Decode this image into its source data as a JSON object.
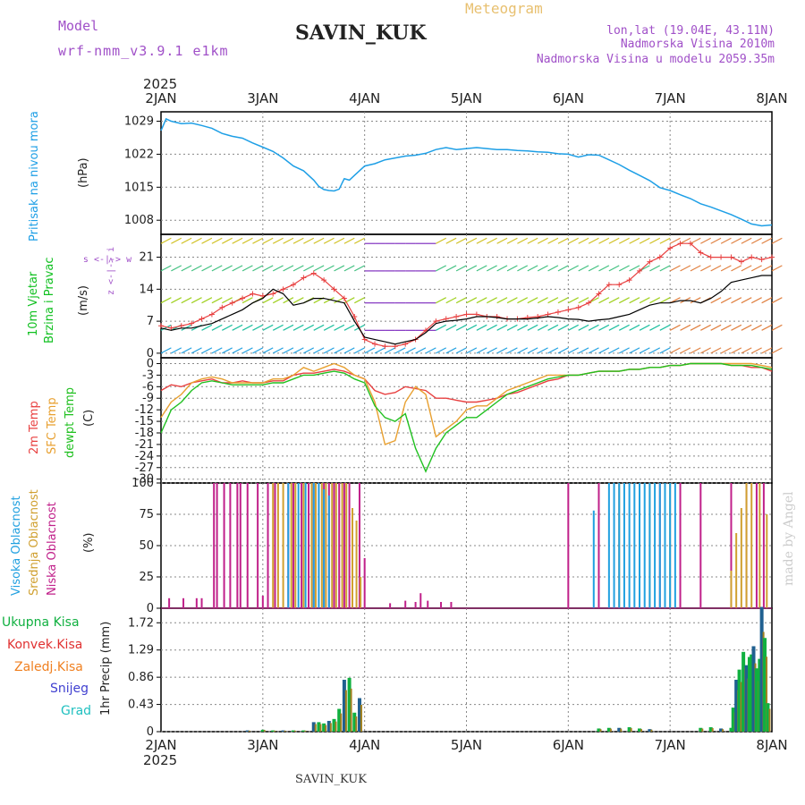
{
  "header": {
    "model_label": "Model",
    "model_name": "wrf-nmm_v3.9.1 e1km",
    "station": "SAVIN_KUK",
    "product": "Meteogram",
    "coords": "lon,lat (19.04E, 43.11N)",
    "elevation": "Nadmorska Visina 2010m",
    "model_elevation": "Nadmorska Visina u modelu 2059.35m",
    "year_top": "2025",
    "year_bottom": "2025",
    "footer_station": "SAVIN_KUK",
    "credit": "made by Angel"
  },
  "colors": {
    "pressure": "#1e9fe6",
    "wind_label": "#10c020",
    "temp2m": "#e84040",
    "sfc": "#e8a030",
    "dewpt": "#20c020",
    "high_cloud": "#20a0e0",
    "mid_cloud": "#d0a030",
    "low_cloud": "#c0208a",
    "purple": "#a050c8",
    "precip_total": "#10b040",
    "precip_conv": "#e03030",
    "precip_strat": "#f08020",
    "snow": "#4040d0",
    "grad": "#20c0c0"
  },
  "chart_data": [
    {
      "type": "line",
      "panel": "pressure",
      "ylabel_side": "Pritisak na nivou mora",
      "ylabel": "(hPa)",
      "x_ticks": [
        "2JAN",
        "3JAN",
        "4JAN",
        "5JAN",
        "6JAN",
        "7JAN",
        "8JAN"
      ],
      "ylim": [
        1005,
        1031
      ],
      "y_ticks": [
        1008,
        1015,
        1022,
        1029
      ],
      "x": [
        0,
        0.05,
        0.1,
        0.2,
        0.3,
        0.4,
        0.5,
        0.6,
        0.7,
        0.8,
        0.9,
        1.0,
        1.1,
        1.2,
        1.3,
        1.4,
        1.5,
        1.55,
        1.6,
        1.65,
        1.7,
        1.75,
        1.8,
        1.85,
        1.9,
        2.0,
        2.1,
        2.2,
        2.3,
        2.4,
        2.5,
        2.6,
        2.7,
        2.8,
        2.9,
        3.0,
        3.1,
        3.2,
        3.3,
        3.4,
        3.5,
        3.6,
        3.7,
        3.8,
        3.9,
        4.0,
        4.1,
        4.2,
        4.3,
        4.4,
        4.5,
        4.6,
        4.7,
        4.8,
        4.9,
        5.0,
        5.1,
        5.2,
        5.3,
        5.4,
        5.5,
        5.6,
        5.7,
        5.8,
        5.9,
        6.0
      ],
      "y": [
        1027,
        1029.5,
        1029,
        1028.5,
        1028.6,
        1028.1,
        1027.5,
        1026.4,
        1025.8,
        1025.4,
        1024.4,
        1023.5,
        1022.6,
        1021.2,
        1019.5,
        1018.5,
        1016.5,
        1015.2,
        1014.5,
        1014.3,
        1014.2,
        1014.6,
        1016.8,
        1016.5,
        1017.5,
        1019.5,
        1020.0,
        1020.8,
        1021.2,
        1021.6,
        1021.8,
        1022.2,
        1023.0,
        1023.4,
        1023.0,
        1023.2,
        1023.4,
        1023.2,
        1023.0,
        1023.0,
        1022.8,
        1022.7,
        1022.5,
        1022.4,
        1022.1,
        1022.0,
        1021.4,
        1021.9,
        1021.8,
        1020.8,
        1019.8,
        1018.6,
        1017.5,
        1016.4,
        1014.9,
        1014.3,
        1013.4,
        1012.6,
        1011.5,
        1010.8,
        1010.0,
        1009.2,
        1008.2,
        1007.2,
        1006.8,
        1007.0
      ]
    },
    {
      "type": "line",
      "panel": "wind",
      "ylabel_side": [
        "10m Vjetar",
        "Brzina i Pravac"
      ],
      "ylabel": "(m/s)",
      "compass": "z <-|-> i",
      "compass_side": "s <-|-> w",
      "ylim": [
        -1,
        26
      ],
      "y_ticks": [
        0,
        7,
        14,
        21
      ],
      "x": [
        0,
        0.1,
        0.2,
        0.3,
        0.4,
        0.5,
        0.6,
        0.7,
        0.8,
        0.9,
        1.0,
        1.1,
        1.2,
        1.3,
        1.4,
        1.5,
        1.6,
        1.7,
        1.8,
        1.9,
        2.0,
        2.1,
        2.2,
        2.3,
        2.4,
        2.5,
        2.6,
        2.7,
        2.8,
        2.9,
        3.0,
        3.1,
        3.2,
        3.3,
        3.4,
        3.5,
        3.6,
        3.7,
        3.8,
        3.9,
        4.0,
        4.1,
        4.2,
        4.3,
        4.4,
        4.5,
        4.6,
        4.7,
        4.8,
        4.9,
        5.0,
        5.1,
        5.2,
        5.3,
        5.4,
        5.5,
        5.6,
        5.7,
        5.8,
        5.9,
        6.0
      ],
      "series": [
        {
          "values": [
            5.5,
            5.0,
            5.5,
            5.5,
            6.0,
            6.5,
            7.5,
            8.5,
            9.5,
            11,
            12,
            14,
            13,
            10.5,
            11,
            12,
            12,
            11.5,
            11,
            7,
            3.5,
            3.0,
            2.5,
            2.0,
            2.5,
            3.0,
            4.5,
            6.5,
            7.0,
            7.2,
            7.5,
            8.0,
            8.0,
            7.8,
            7.5,
            7.5,
            7.5,
            7.7,
            8.0,
            7.8,
            7.5,
            7.4,
            7.0,
            7.3,
            7.5,
            8.0,
            8.5,
            9.5,
            10.5,
            11,
            11,
            11.5,
            11.5,
            11,
            12,
            13.5,
            15.5,
            16,
            16.5,
            17,
            17
          ]
        },
        {
          "values": [
            6,
            5.5,
            6,
            6.5,
            7.5,
            8.5,
            10,
            11,
            12,
            13,
            12.5,
            13,
            14,
            15,
            16.5,
            17.5,
            16,
            14,
            12,
            8,
            3,
            2,
            1.5,
            1.5,
            2,
            3,
            5,
            7,
            7.5,
            8,
            8.5,
            8.5,
            8,
            8,
            7.5,
            7.5,
            7.8,
            8,
            8.5,
            9,
            9.5,
            10,
            11,
            13,
            15,
            15,
            16,
            18,
            20,
            21,
            23,
            24,
            24,
            22,
            21,
            21,
            21,
            20,
            21,
            20.5,
            21
          ]
        }
      ]
    },
    {
      "type": "line",
      "panel": "temperature",
      "ylabel_side": [
        "2m Temp",
        "SFC Temp",
        "dewpt Temp"
      ],
      "ylabel": "(C)",
      "ylim": [
        -31,
        1.5
      ],
      "y_ticks": [
        0,
        -3,
        -6,
        -9,
        -12,
        -15,
        -18,
        -21,
        -24,
        -27,
        -30
      ],
      "x": [
        0,
        0.1,
        0.2,
        0.3,
        0.4,
        0.5,
        0.6,
        0.7,
        0.8,
        0.9,
        1.0,
        1.1,
        1.2,
        1.3,
        1.4,
        1.5,
        1.6,
        1.7,
        1.8,
        1.9,
        2.0,
        2.1,
        2.2,
        2.3,
        2.4,
        2.5,
        2.6,
        2.7,
        2.8,
        2.9,
        3.0,
        3.1,
        3.2,
        3.3,
        3.4,
        3.5,
        3.6,
        3.7,
        3.8,
        3.9,
        4.0,
        4.1,
        4.2,
        4.3,
        4.4,
        4.5,
        4.6,
        4.7,
        4.8,
        4.9,
        5.0,
        5.1,
        5.2,
        5.3,
        5.4,
        5.5,
        5.6,
        5.7,
        5.8,
        5.9,
        6.0
      ],
      "series": [
        {
          "name": "2m Temp",
          "values": [
            -7,
            -5.5,
            -6,
            -5,
            -4.5,
            -4,
            -5,
            -5,
            -4.5,
            -5,
            -5,
            -4.5,
            -4.5,
            -3,
            -2.5,
            -2.5,
            -2,
            -1.5,
            -2,
            -3,
            -4,
            -7,
            -8,
            -7.5,
            -6,
            -6.5,
            -7,
            -9,
            -9,
            -9.5,
            -10,
            -10,
            -9.5,
            -9,
            -8,
            -7.5,
            -6.5,
            -5.5,
            -4.5,
            -4,
            -3,
            -3,
            -2.5,
            -2,
            -2,
            -2,
            -1.5,
            -1.5,
            -1,
            -1,
            -0.5,
            -0.5,
            0,
            0,
            0,
            0,
            -0.5,
            -0.5,
            -1,
            -1,
            -2
          ]
        },
        {
          "name": "SFC Temp",
          "values": [
            -14,
            -10,
            -8,
            -5,
            -4,
            -3.5,
            -4,
            -5,
            -5,
            -5,
            -5,
            -4,
            -4,
            -3,
            -1,
            -2,
            -1,
            0,
            -1,
            -3,
            -4,
            -10,
            -21,
            -20,
            -10,
            -6,
            -8,
            -19,
            -17,
            -15,
            -12,
            -11,
            -11,
            -9,
            -7,
            -6,
            -5,
            -4,
            -3,
            -3,
            -3,
            -3,
            -2.5,
            -2,
            -2,
            -2,
            -1.5,
            -1.5,
            -1,
            -1,
            -0.5,
            -0.5,
            0,
            0,
            0,
            0,
            0,
            0,
            0,
            -0.5,
            -1
          ]
        },
        {
          "name": "dewpt Temp",
          "values": [
            -18,
            -12,
            -10,
            -7,
            -5,
            -4.5,
            -5,
            -5.5,
            -5.5,
            -5.5,
            -5.5,
            -5,
            -5,
            -4,
            -3,
            -3,
            -2.5,
            -2,
            -2.5,
            -4,
            -5,
            -11,
            -14,
            -15,
            -13,
            -22,
            -28,
            -22,
            -18,
            -16,
            -14,
            -14,
            -12,
            -10,
            -8,
            -7,
            -6,
            -5,
            -4,
            -3.5,
            -3,
            -3,
            -2.5,
            -2,
            -2,
            -2,
            -1.5,
            -1.5,
            -1,
            -1,
            -0.5,
            -0.5,
            0,
            0,
            0,
            0,
            -0.5,
            -0.5,
            -0.5,
            -1,
            -1.5
          ]
        }
      ]
    },
    {
      "type": "bar",
      "panel": "cloud",
      "ylabel_side": [
        "Visoka Oblacnost",
        "Srednja Oblacnost",
        "Niska Oblacnost"
      ],
      "ylabel": "(%)",
      "ylim": [
        0,
        100
      ],
      "y_ticks": [
        0,
        25,
        50,
        75,
        100
      ],
      "series": [
        {
          "name": "Niska Oblacnost",
          "x": [
            0.08,
            0.22,
            0.35,
            0.4,
            0.52,
            0.55,
            0.62,
            0.68,
            0.75,
            0.78,
            0.85,
            0.95,
            1.0,
            1.05,
            1.12,
            1.25,
            1.3,
            1.38,
            1.45,
            1.5,
            1.55,
            1.6,
            1.65,
            1.7,
            1.75,
            1.8,
            1.85,
            1.95,
            2.0,
            2.25,
            2.4,
            2.5,
            2.55,
            2.62,
            2.75,
            2.85,
            4.0,
            4.3,
            4.9,
            5.1,
            5.3,
            5.6,
            5.75,
            5.85,
            5.92
          ],
          "values": [
            8,
            8,
            8,
            8,
            100,
            100,
            100,
            100,
            100,
            100,
            100,
            100,
            10,
            100,
            100,
            100,
            100,
            100,
            100,
            100,
            100,
            100,
            100,
            100,
            100,
            100,
            100,
            100,
            40,
            4,
            6,
            5,
            12,
            6,
            5,
            5,
            100,
            100,
            100,
            100,
            100,
            100,
            100,
            100,
            100
          ]
        },
        {
          "name": "Srednja Oblacnost",
          "x": [
            1.1,
            1.15,
            1.2,
            1.28,
            1.32,
            1.4,
            1.48,
            1.52,
            1.58,
            1.62,
            1.68,
            1.72,
            1.78,
            1.82,
            1.88,
            1.92,
            1.96,
            4.5,
            4.8,
            5.0,
            5.6,
            5.65,
            5.7,
            5.75,
            5.8,
            5.88,
            5.95
          ],
          "values": [
            100,
            100,
            100,
            100,
            100,
            100,
            100,
            100,
            100,
            100,
            100,
            100,
            100,
            100,
            80,
            70,
            25,
            100,
            100,
            100,
            30,
            60,
            80,
            100,
            100,
            100,
            75
          ]
        },
        {
          "name": "Visoka Oblacnost",
          "x": [
            1.05,
            1.25,
            1.35,
            1.42,
            1.5,
            1.55,
            1.6,
            1.65,
            4.25,
            4.4,
            4.45,
            4.5,
            4.55,
            4.6,
            4.65,
            4.7,
            4.75,
            4.8,
            4.85,
            4.9,
            4.95,
            5.0,
            5.05
          ],
          "values": [
            0,
            100,
            100,
            100,
            100,
            100,
            95,
            90,
            78,
            100,
            100,
            100,
            100,
            100,
            100,
            100,
            100,
            100,
            100,
            100,
            100,
            100,
            100
          ]
        }
      ]
    },
    {
      "type": "bar",
      "panel": "precip",
      "legend": [
        "Ukupna Kisa",
        "Konvek.Kisa",
        "Zaledj.Kisa",
        "Snijeg",
        "Grad"
      ],
      "ylabel": "1hr Precip (mm)",
      "x_ticks": [
        "2JAN",
        "3JAN",
        "4JAN",
        "5JAN",
        "6JAN",
        "7JAN",
        "8JAN"
      ],
      "ylim": [
        0,
        1.95
      ],
      "y_ticks": [
        0,
        0.43,
        0.86,
        1.29,
        1.72
      ],
      "series": [
        {
          "name": "Ukupna Kisa",
          "x": [
            0.85,
            1.0,
            1.1,
            1.2,
            1.3,
            1.4,
            1.5,
            1.55,
            1.6,
            1.65,
            1.7,
            1.75,
            1.8,
            1.85,
            1.9,
            1.95,
            4.3,
            4.4,
            4.5,
            4.6,
            4.7,
            4.8,
            5.3,
            5.4,
            5.5,
            5.6,
            5.62,
            5.65,
            5.68,
            5.72,
            5.75,
            5.78,
            5.8,
            5.82,
            5.85,
            5.88,
            5.9,
            5.93,
            5.96
          ],
          "values": [
            0.02,
            0.03,
            0.02,
            0.02,
            0.02,
            0.02,
            0.15,
            0.15,
            0.13,
            0.17,
            0.2,
            0.36,
            0.82,
            0.85,
            0.3,
            0.53,
            0.05,
            0.06,
            0.06,
            0.07,
            0.05,
            0.04,
            0.06,
            0.07,
            0.05,
            0.06,
            0.38,
            0.82,
            0.98,
            1.26,
            1.05,
            1.18,
            1.22,
            1.35,
            1.0,
            1.15,
            1.97,
            1.48,
            0.45
          ]
        }
      ]
    }
  ]
}
